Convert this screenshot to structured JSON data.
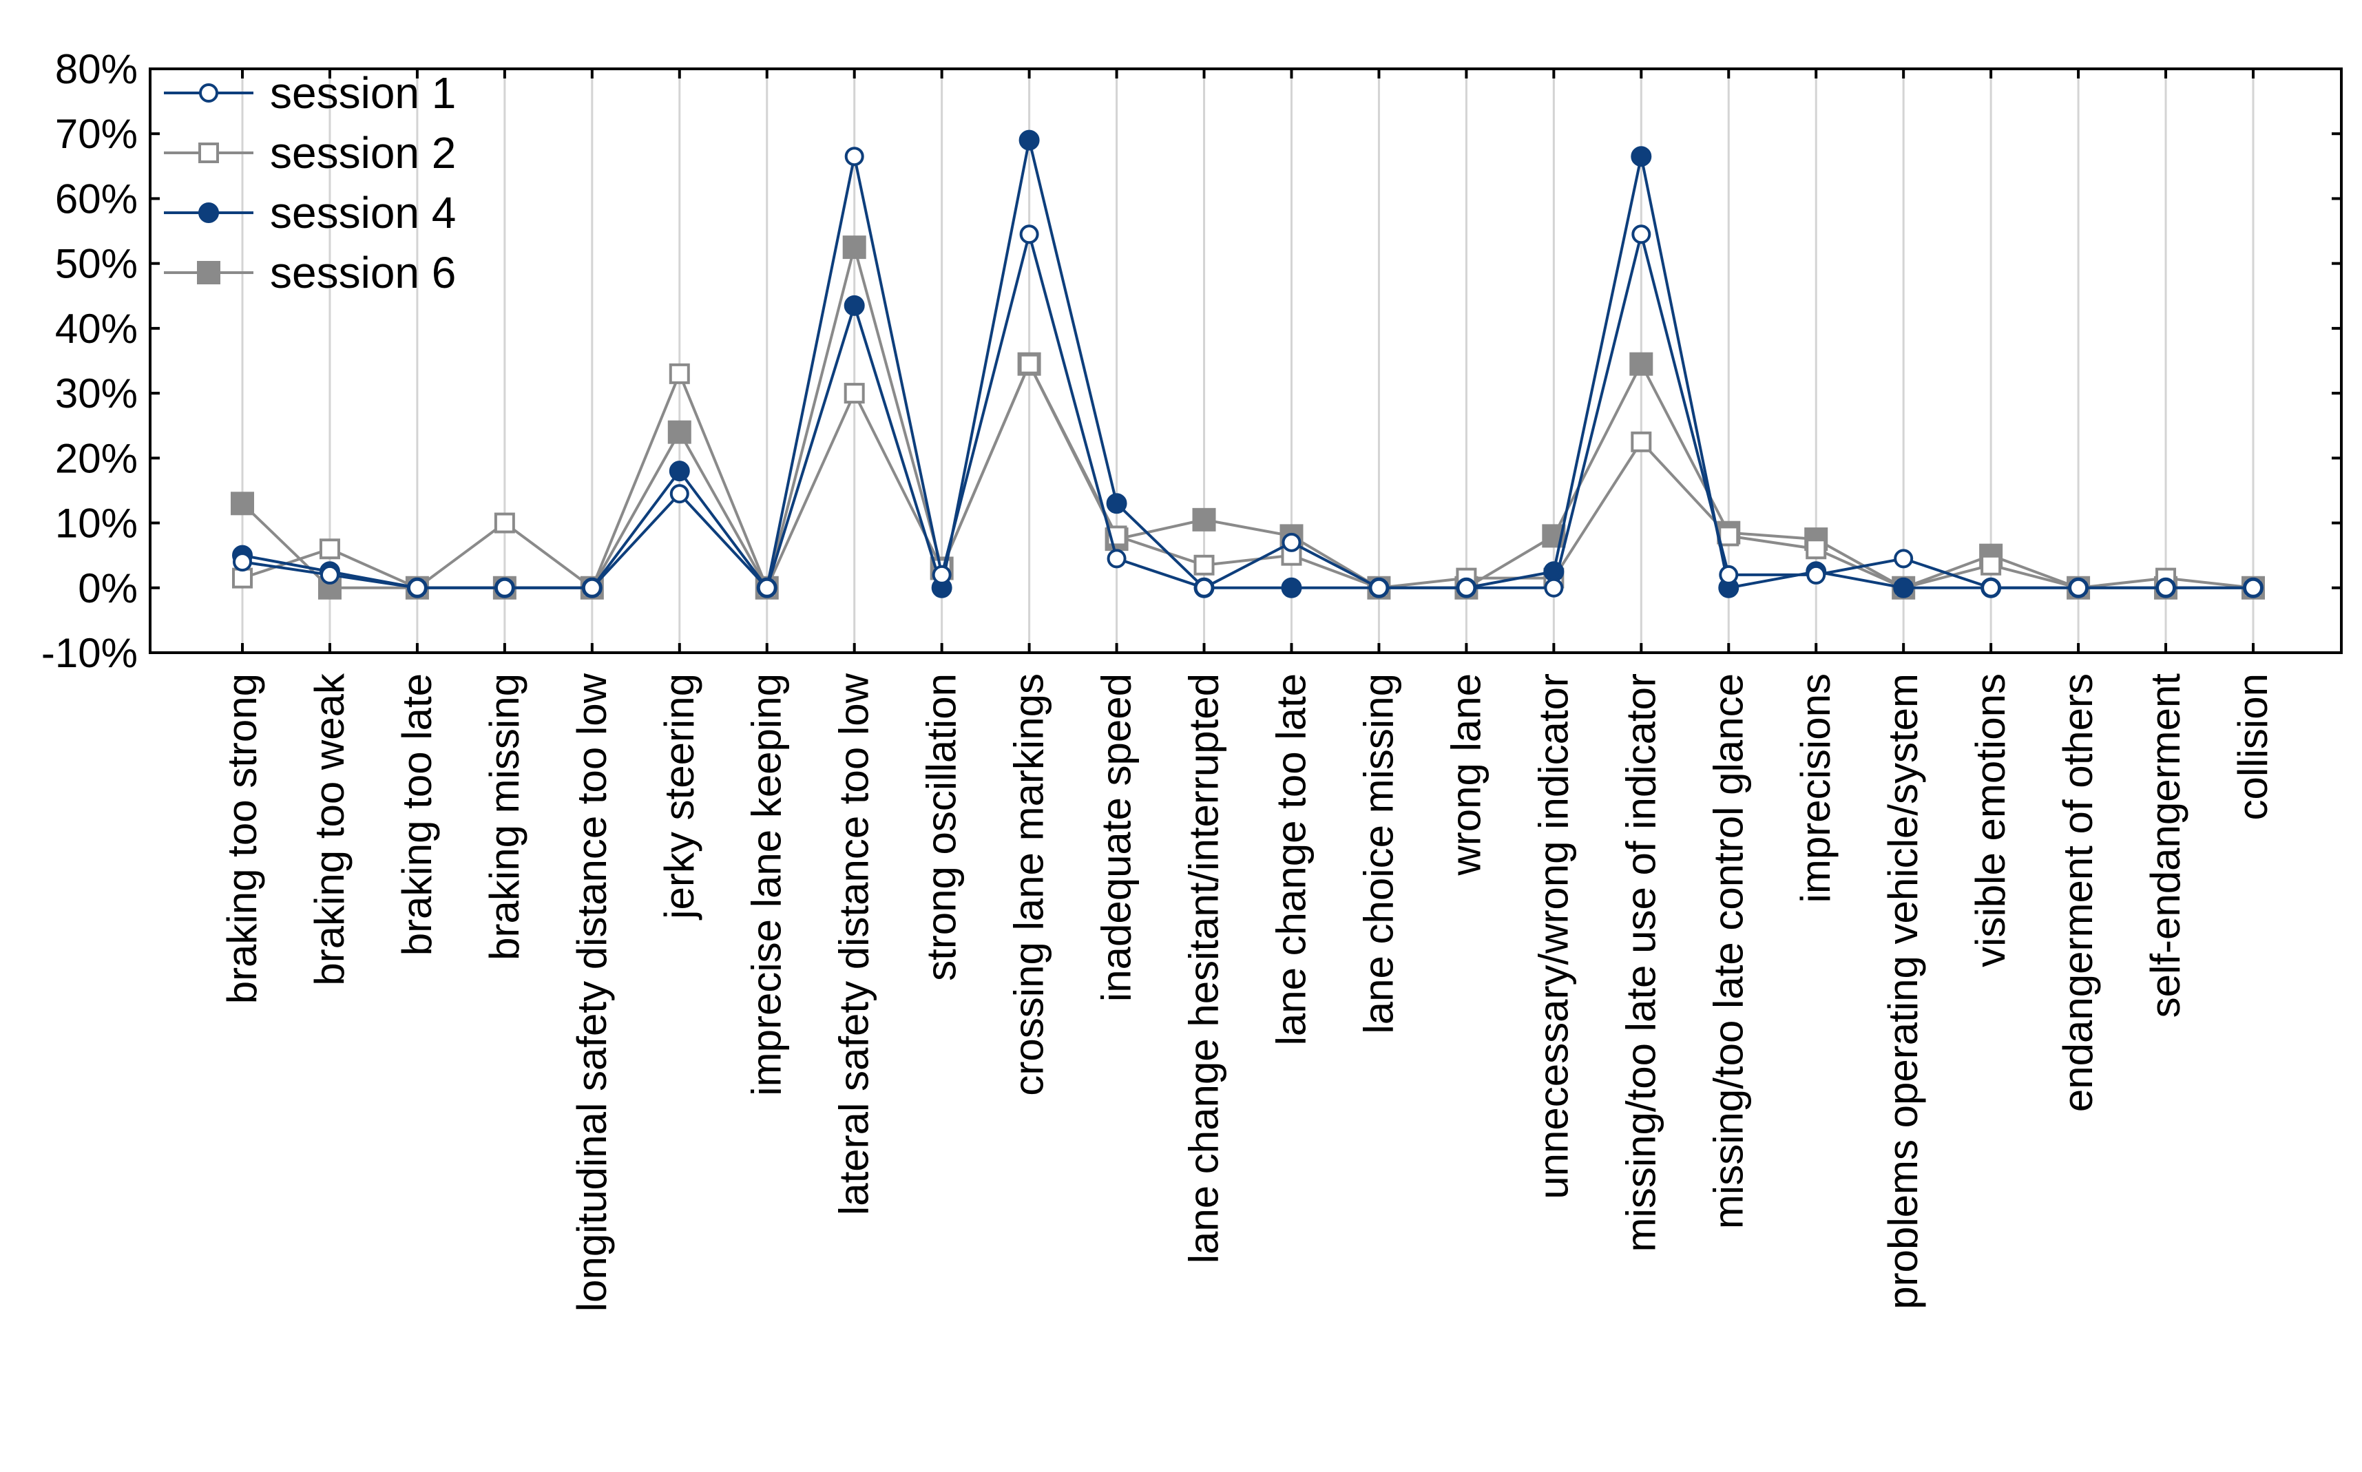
{
  "chart_data": {
    "type": "line",
    "title": "",
    "xlabel": "",
    "ylabel": "",
    "ylim": [
      -10,
      80
    ],
    "yticks": [
      -10,
      0,
      10,
      20,
      30,
      40,
      50,
      60,
      70,
      80
    ],
    "ytick_labels": [
      "-10%",
      "0%",
      "10%",
      "20%",
      "30%",
      "40%",
      "50%",
      "60%",
      "70%",
      "80%"
    ],
    "grid": "vertical",
    "legend_position": "top-left",
    "categories": [
      "braking too strong",
      "braking too weak",
      "braking too late",
      "braking missing",
      "longitudinal safety distance too low",
      "jerky steering",
      "imprecise lane keeping",
      "lateral safety distance too low",
      "strong oscillation",
      "crossing lane markings",
      "inadequate speed",
      "lane change hesitant/interrupted",
      "lane change too late",
      "lane choice missing",
      "wrong lane",
      "unnecessary/wrong indicator",
      "missing/too late use of indicator",
      "missing/too late control glance",
      "imprecisions",
      "problems operating vehicle/system",
      "visible emotions",
      "endangerment of others",
      "self-endangerment",
      "collision"
    ],
    "series": [
      {
        "name": "session 1",
        "color": "#0d3e7c",
        "marker": "open-circle",
        "values": [
          4,
          2,
          0,
          0,
          0,
          14.5,
          0,
          66.5,
          2,
          54.5,
          4.5,
          0,
          7,
          0,
          0,
          0,
          54.5,
          2,
          2,
          4.5,
          0,
          0,
          0,
          0
        ]
      },
      {
        "name": "session 2",
        "color": "#8a8a8a",
        "marker": "open-square",
        "values": [
          1.5,
          6,
          0,
          10,
          0,
          33,
          0,
          30,
          3,
          34.5,
          8,
          3.5,
          5,
          0,
          1.5,
          1.5,
          22.5,
          8,
          6,
          0,
          3.5,
          0,
          1.5,
          0
        ]
      },
      {
        "name": "session 4",
        "color": "#0d3e7c",
        "marker": "filled-circle",
        "values": [
          5,
          2.5,
          0,
          0,
          0,
          18,
          0,
          43.5,
          0,
          69,
          13,
          0,
          0,
          0,
          0,
          2.5,
          66.5,
          0,
          2.5,
          0,
          0,
          0,
          0,
          0
        ]
      },
      {
        "name": "session 6",
        "color": "#8a8a8a",
        "marker": "filled-square",
        "values": [
          13,
          0,
          0,
          0,
          0,
          24,
          0,
          52.5,
          3,
          34.5,
          7.5,
          10.5,
          8,
          0,
          0,
          8,
          34.5,
          8.5,
          7.5,
          0,
          5,
          0,
          0,
          0
        ]
      }
    ]
  }
}
